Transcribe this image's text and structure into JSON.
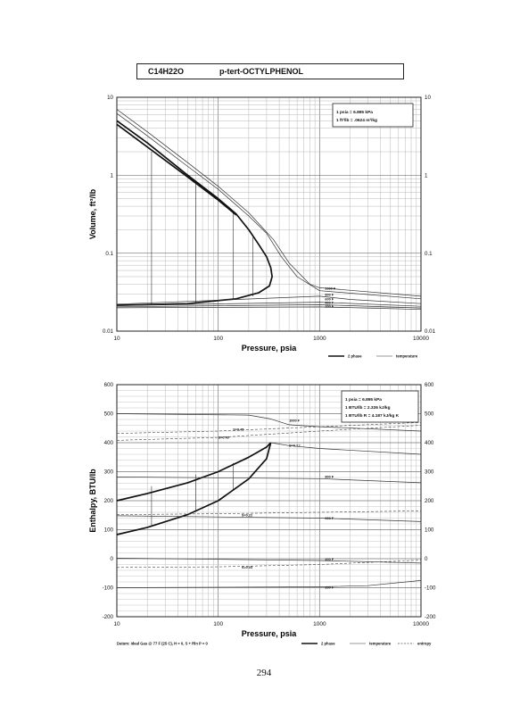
{
  "header": {
    "formula": "C14H22O",
    "compound": "p-tert-OCTYLPHENOL"
  },
  "page_number": "294",
  "chart_data": [
    {
      "type": "line",
      "xscale": "log",
      "yscale": "log",
      "xlim": [
        10,
        10000
      ],
      "ylim": [
        0.01,
        10
      ],
      "xlabel": "Pressure,  psia",
      "ylabel": "Volume, ft^3/lb",
      "xticks": [
        "10",
        "100",
        "1000",
        "10000"
      ],
      "yticks_left": [
        "10",
        "1",
        "0.1",
        "0.01"
      ],
      "yticks_right": [
        "10",
        "1",
        "0.1",
        "0.01"
      ],
      "info_box": [
        "1 psia  =  6.895 kPa",
        "1 ft^3/lb  =  .0624 m^3/kg"
      ],
      "legend": [
        "2 phase",
        "temperature"
      ],
      "series": [
        {
          "role": "2-phase",
          "points": [
            [
              10,
              5.0
            ],
            [
              20,
              2.6
            ],
            [
              50,
              1.0
            ],
            [
              100,
              0.5
            ],
            [
              150,
              0.32
            ],
            [
              200,
              0.2
            ],
            [
              250,
              0.13
            ],
            [
              300,
              0.09
            ],
            [
              330,
              0.065
            ],
            [
              340,
              0.05
            ],
            [
              320,
              0.038
            ],
            [
              250,
              0.031
            ],
            [
              150,
              0.026
            ],
            [
              50,
              0.0225
            ],
            [
              10,
              0.0215
            ]
          ]
        },
        {
          "role": "2-phase",
          "points": [
            [
              10,
              4.5
            ],
            [
              20,
              2.3
            ],
            [
              50,
              0.95
            ],
            [
              100,
              0.48
            ],
            [
              150,
              0.31
            ]
          ]
        },
        {
          "role": "isotherm",
          "points": [
            [
              10,
              7.0
            ],
            [
              20,
              3.6
            ],
            [
              50,
              1.45
            ],
            [
              100,
              0.72
            ],
            [
              200,
              0.33
            ],
            [
              350,
              0.15
            ],
            [
              500,
              0.075
            ],
            [
              800,
              0.04
            ],
            [
              1000,
              0.036
            ],
            [
              10000,
              0.028
            ]
          ]
        },
        {
          "role": "isotherm",
          "points": [
            [
              10,
              6.2
            ],
            [
              20,
              3.2
            ],
            [
              50,
              1.3
            ],
            [
              100,
              0.66
            ],
            [
              200,
              0.3
            ],
            [
              300,
              0.18
            ],
            [
              420,
              0.09
            ],
            [
              600,
              0.05
            ],
            [
              1000,
              0.033
            ],
            [
              10000,
              0.026
            ]
          ]
        },
        {
          "role": "isotherm",
          "points": [
            [
              10,
              0.0222
            ],
            [
              1000,
              0.028
            ],
            [
              2000,
              0.0255
            ],
            [
              10000,
              0.0225
            ]
          ]
        },
        {
          "role": "isotherm",
          "points": [
            [
              10,
              0.0212
            ],
            [
              1000,
              0.0235
            ],
            [
              10000,
              0.0208
            ]
          ]
        },
        {
          "role": "isotherm",
          "points": [
            [
              10,
              0.0205
            ],
            [
              1000,
              0.0218
            ],
            [
              10000,
              0.0198
            ]
          ]
        },
        {
          "role": "isotherm",
          "points": [
            [
              10,
              0.0199
            ],
            [
              1000,
              0.0205
            ],
            [
              10000,
              0.019
            ]
          ]
        }
      ],
      "tielines": [
        [
          22,
          2.0,
          0.022
        ],
        [
          60,
          0.85,
          0.023
        ],
        [
          140,
          0.35,
          0.026
        ],
        [
          220,
          0.16,
          0.028
        ]
      ],
      "curve_labels": [
        {
          "text": "1000 F",
          "x": 1130,
          "y": 0.036
        },
        {
          "text": "800 F",
          "x": 1130,
          "y": 0.03
        },
        {
          "text": "600 F",
          "x": 1130,
          "y": 0.0262
        },
        {
          "text": "400 F",
          "x": 1130,
          "y": 0.0235
        },
        {
          "text": "200 F",
          "x": 1130,
          "y": 0.0212
        }
      ]
    },
    {
      "type": "line",
      "xscale": "log",
      "xlim": [
        10,
        10000
      ],
      "ylim": [
        -200,
        600
      ],
      "xlabel": "Pressure,  psia",
      "ylabel": "Enthalpy, BTU/lb",
      "xticks": [
        "10",
        "100",
        "1000",
        "10000"
      ],
      "yticks_left": [
        "600",
        "500",
        "400",
        "300",
        "200",
        "100",
        "0",
        "-100",
        "-200"
      ],
      "yticks_right": [
        "600",
        "500",
        "400",
        "300",
        "200",
        "100",
        "0",
        "-100",
        "-200"
      ],
      "info_box": [
        "1 psia  =  6.895 kPa",
        "1 BTU/lb  =  2.326 kJ/kg",
        "1 BTU/lb R  =  4.187 kJ/kg K"
      ],
      "legend": [
        "2 phase",
        "temperature",
        "entropy"
      ],
      "series": [
        {
          "role": "2-phase",
          "points": [
            [
              10,
              200
            ],
            [
              20,
              225
            ],
            [
              50,
              262
            ],
            [
              100,
              300
            ],
            [
              200,
              350
            ],
            [
              300,
              385
            ],
            [
              330,
              400
            ]
          ]
        },
        {
          "role": "2-phase",
          "points": [
            [
              10,
              83
            ],
            [
              20,
              108
            ],
            [
              50,
              152
            ],
            [
              100,
              200
            ],
            [
              200,
              275
            ],
            [
              300,
              345
            ],
            [
              330,
              400
            ]
          ]
        },
        {
          "role": "isotherm",
          "points": [
            [
              10,
              500
            ],
            [
              200,
              495
            ],
            [
              330,
              482
            ],
            [
              500,
              462
            ],
            [
              1000,
              455
            ],
            [
              10000,
              440
            ]
          ]
        },
        {
          "role": "isotherm",
          "points": [
            [
              330,
              400
            ],
            [
              500,
              390
            ],
            [
              1000,
              380
            ],
            [
              10000,
              360
            ]
          ]
        },
        {
          "role": "isotherm",
          "points": [
            [
              10,
              282
            ],
            [
              1000,
              276
            ],
            [
              10000,
              262
            ]
          ]
        },
        {
          "role": "isotherm",
          "points": [
            [
              10,
              148
            ],
            [
              1000,
              140
            ],
            [
              10000,
              128
            ]
          ]
        },
        {
          "role": "isotherm",
          "points": [
            [
              10,
              2
            ],
            [
              1000,
              -6
            ],
            [
              10000,
              -15
            ]
          ]
        },
        {
          "role": "isotherm",
          "points": [
            [
              10,
              -100
            ],
            [
              1000,
              -97
            ],
            [
              3000,
              -93
            ],
            [
              10000,
              -75
            ]
          ]
        },
        {
          "role": "entropy",
          "points": [
            [
              10,
              432
            ],
            [
              100,
              440
            ],
            [
              1000,
              455
            ],
            [
              10000,
              470
            ]
          ]
        },
        {
          "role": "entropy",
          "points": [
            [
              10,
              408
            ],
            [
              100,
              418
            ],
            [
              1000,
              440
            ],
            [
              10000,
              460
            ]
          ]
        },
        {
          "role": "entropy",
          "points": [
            [
              10,
              152
            ],
            [
              100,
              155
            ],
            [
              1000,
              160
            ],
            [
              10000,
              165
            ]
          ]
        },
        {
          "role": "entropy",
          "points": [
            [
              10,
              -30
            ],
            [
              100,
              -28
            ],
            [
              1000,
              -20
            ],
            [
              10000,
              -5
            ]
          ]
        }
      ],
      "tielines": [
        [
          22,
          250,
          115
        ],
        [
          60,
          290,
          165
        ],
        [
          140,
          330,
          238
        ]
      ],
      "curve_labels": [
        {
          "text": "1000 F",
          "x": 500,
          "y": 478
        },
        {
          "text": "S=0.45",
          "x": 140,
          "y": 447
        },
        {
          "text": "S=0.40",
          "x": 100,
          "y": 420
        },
        {
          "text": "S=0.??",
          "x": 500,
          "y": 393
        },
        {
          "text": "800 F",
          "x": 1130,
          "y": 285
        },
        {
          "text": "S=0.22",
          "x": 170,
          "y": 152
        },
        {
          "text": "600 F",
          "x": 1130,
          "y": 142
        },
        {
          "text": "400 F",
          "x": 1130,
          "y": 0
        },
        {
          "text": "S=0.03",
          "x": 170,
          "y": -27
        },
        {
          "text": "200 F",
          "x": 1130,
          "y": -97
        }
      ],
      "footnote": "Datum: Ideal Gas @ 77 F (25 C),  H = 0,  S + Rln P = 0"
    }
  ]
}
